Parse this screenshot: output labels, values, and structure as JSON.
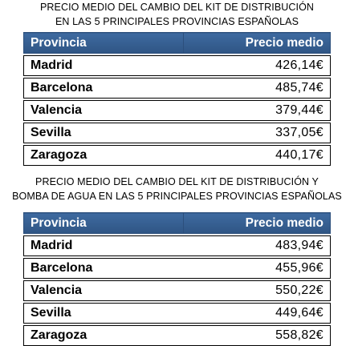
{
  "tables": [
    {
      "caption_lines": [
        "PRECIO MEDIO DEL CAMBIO DEL KIT DE DISTRIBUCIÓN",
        "EN LAS 5 PRINCIPALES PROVINCIAS  ESPAÑOLAS"
      ],
      "headers": [
        "Provincia",
        "Precio medio"
      ],
      "rows": [
        {
          "provincia": "Madrid",
          "precio": "426,14€"
        },
        {
          "provincia": "Barcelona",
          "precio": "485,74€"
        },
        {
          "provincia": "Valencia",
          "precio": "379,44€"
        },
        {
          "provincia": "Sevilla",
          "precio": "337,05€"
        },
        {
          "provincia": "Zaragoza",
          "precio": "440,17€"
        }
      ]
    },
    {
      "caption_lines": [
        "PRECIO MEDIO DEL CAMBIO DEL KIT DE DISTRIBUCIÓN  Y",
        "BOMBA DE AGUA EN LAS 5 PRINCIPALES PROVINCIAS  ESPAÑOLAS"
      ],
      "headers": [
        "Provincia",
        "Precio medio"
      ],
      "rows": [
        {
          "provincia": "Madrid",
          "precio": "483,94€"
        },
        {
          "provincia": "Barcelona",
          "precio": "455,96€"
        },
        {
          "provincia": "Valencia",
          "precio": "550,22€"
        },
        {
          "provincia": "Sevilla",
          "precio": "449,64€"
        },
        {
          "provincia": "Zaragoza",
          "precio": "558,82€"
        }
      ]
    }
  ],
  "colors": {
    "header_bg": "#365f91",
    "header_text": "#ffffff",
    "border": "#000000"
  }
}
